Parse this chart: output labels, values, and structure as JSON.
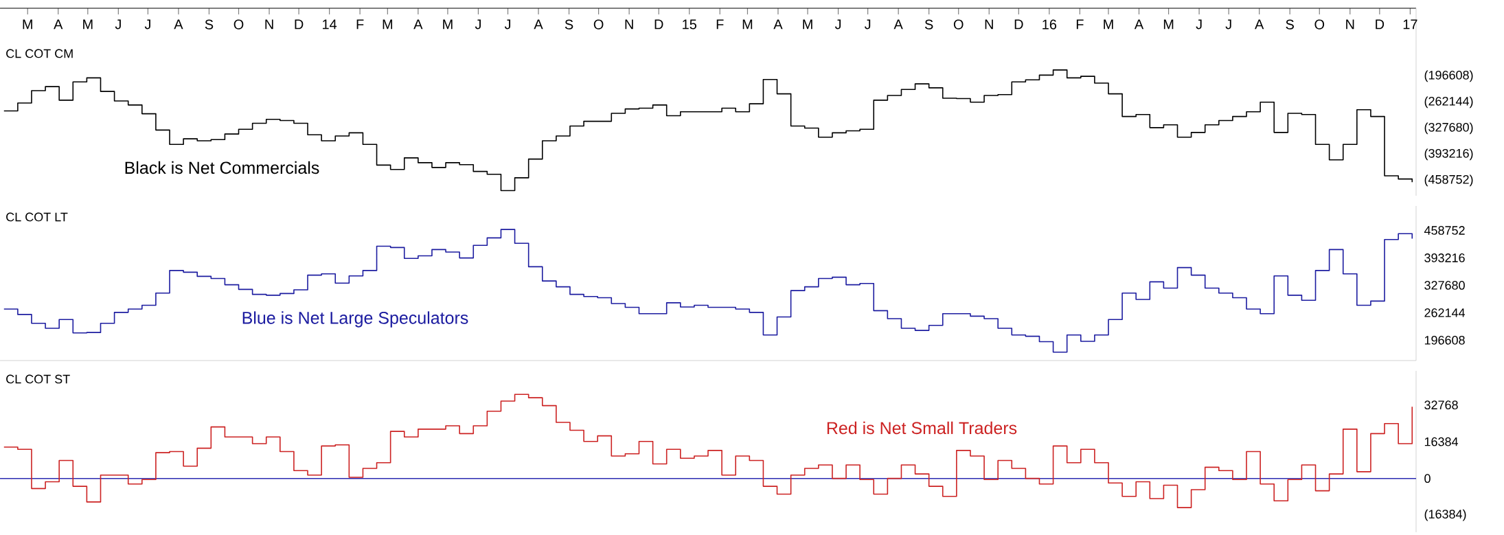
{
  "chart_data": [
    {
      "type": "step",
      "title": "CL COT CM",
      "annotations": [
        "Black is Net Commercials"
      ],
      "x": [
        "2013-02-05",
        "2013-02-19",
        "2013-03-05",
        "2013-03-19",
        "2013-04-02",
        "2013-04-16",
        "2013-04-30",
        "2013-05-14",
        "2013-05-28",
        "2013-06-11",
        "2013-06-25",
        "2013-07-09",
        "2013-07-23",
        "2013-08-06",
        "2013-08-20",
        "2013-09-03",
        "2013-09-17",
        "2013-10-01",
        "2013-10-15",
        "2013-10-29",
        "2013-11-12",
        "2013-11-26",
        "2013-12-10",
        "2013-12-24",
        "2014-01-07",
        "2014-01-21",
        "2014-02-04",
        "2014-02-18",
        "2014-03-04",
        "2014-03-18",
        "2014-04-01",
        "2014-04-15",
        "2014-04-29",
        "2014-05-13",
        "2014-05-27",
        "2014-06-10",
        "2014-06-24",
        "2014-07-08",
        "2014-07-22",
        "2014-08-05",
        "2014-08-19",
        "2014-09-02",
        "2014-09-16",
        "2014-09-30",
        "2014-10-14",
        "2014-10-28",
        "2014-11-11",
        "2014-11-25",
        "2014-12-09",
        "2014-12-23",
        "2015-01-06",
        "2015-01-20",
        "2015-02-03",
        "2015-02-17",
        "2015-03-03",
        "2015-03-17",
        "2015-03-31",
        "2015-04-14",
        "2015-04-28",
        "2015-05-12",
        "2015-05-26",
        "2015-06-09",
        "2015-06-23",
        "2015-07-07",
        "2015-07-21",
        "2015-08-04",
        "2015-08-18",
        "2015-09-01",
        "2015-09-15",
        "2015-09-29",
        "2015-10-13",
        "2015-10-27",
        "2015-11-10",
        "2015-11-24",
        "2015-12-08",
        "2015-12-22",
        "2016-01-05",
        "2016-01-19",
        "2016-02-02",
        "2016-02-16",
        "2016-03-01",
        "2016-03-15",
        "2016-03-29",
        "2016-04-12",
        "2016-04-26",
        "2016-05-10",
        "2016-05-24",
        "2016-06-07",
        "2016-06-21",
        "2016-07-05",
        "2016-07-19",
        "2016-08-02",
        "2016-08-16",
        "2016-08-30",
        "2016-09-13",
        "2016-09-27",
        "2016-10-11",
        "2016-10-25",
        "2016-11-08",
        "2016-11-22",
        "2016-12-06",
        "2016-12-20",
        "2017-01-03"
      ],
      "series": [
        {
          "color": "#000000",
          "values": [
            -284000,
            -264000,
            -233000,
            -223000,
            -257000,
            -211000,
            -201000,
            -235000,
            -259000,
            -269000,
            -291000,
            -332000,
            -368000,
            -354000,
            -359000,
            -356000,
            -342000,
            -330000,
            -315000,
            -305000,
            -308000,
            -315000,
            -344000,
            -359000,
            -347000,
            -339000,
            -368000,
            -420000,
            -431000,
            -402000,
            -414000,
            -426000,
            -414000,
            -419000,
            -436000,
            -443000,
            -484000,
            -452000,
            -405000,
            -359000,
            -347000,
            -322000,
            -310000,
            -310000,
            -290000,
            -279000,
            -277000,
            -269000,
            -296000,
            -286000,
            -286000,
            -286000,
            -277000,
            -286000,
            -266000,
            -205000,
            -241000,
            -322000,
            -327000,
            -350000,
            -339000,
            -334000,
            -330000,
            -257000,
            -245000,
            -230000,
            -216000,
            -226000,
            -252000,
            -253000,
            -262000,
            -245000,
            -243000,
            -211000,
            -206000,
            -194000,
            -181000,
            -201000,
            -197000,
            -214000,
            -241000,
            -298000,
            -293000,
            -326000,
            -319000,
            -350000,
            -338000,
            -319000,
            -308000,
            -298000,
            -286000,
            -262000,
            -338000,
            -290000,
            -293000,
            -368000,
            -407000,
            -368000,
            -281000,
            -298000,
            -447000,
            -455000,
            -463000
          ]
        }
      ],
      "xlim": [
        "2013-02-01",
        "2017-01-07"
      ],
      "xticks": [
        {
          "value": "2013-03-01",
          "label": "M"
        },
        {
          "value": "2013-04-01",
          "label": "A"
        },
        {
          "value": "2013-05-01",
          "label": "M"
        },
        {
          "value": "2013-06-01",
          "label": "J"
        },
        {
          "value": "2013-07-01",
          "label": "J"
        },
        {
          "value": "2013-08-01",
          "label": "A"
        },
        {
          "value": "2013-09-01",
          "label": "S"
        },
        {
          "value": "2013-10-01",
          "label": "O"
        },
        {
          "value": "2013-11-01",
          "label": "N"
        },
        {
          "value": "2013-12-01",
          "label": "D"
        },
        {
          "value": "2014-01-01",
          "label": "14"
        },
        {
          "value": "2014-02-01",
          "label": "F"
        },
        {
          "value": "2014-03-01",
          "label": "M"
        },
        {
          "value": "2014-04-01",
          "label": "A"
        },
        {
          "value": "2014-05-01",
          "label": "M"
        },
        {
          "value": "2014-06-01",
          "label": "J"
        },
        {
          "value": "2014-07-01",
          "label": "J"
        },
        {
          "value": "2014-08-01",
          "label": "A"
        },
        {
          "value": "2014-09-01",
          "label": "S"
        },
        {
          "value": "2014-10-01",
          "label": "O"
        },
        {
          "value": "2014-11-01",
          "label": "N"
        },
        {
          "value": "2014-12-01",
          "label": "D"
        },
        {
          "value": "2015-01-01",
          "label": "15"
        },
        {
          "value": "2015-02-01",
          "label": "F"
        },
        {
          "value": "2015-03-01",
          "label": "M"
        },
        {
          "value": "2015-04-01",
          "label": "A"
        },
        {
          "value": "2015-05-01",
          "label": "M"
        },
        {
          "value": "2015-06-01",
          "label": "J"
        },
        {
          "value": "2015-07-01",
          "label": "J"
        },
        {
          "value": "2015-08-01",
          "label": "A"
        },
        {
          "value": "2015-09-01",
          "label": "S"
        },
        {
          "value": "2015-10-01",
          "label": "O"
        },
        {
          "value": "2015-11-01",
          "label": "N"
        },
        {
          "value": "2015-12-01",
          "label": "D"
        },
        {
          "value": "2016-01-01",
          "label": "16"
        },
        {
          "value": "2016-02-01",
          "label": "F"
        },
        {
          "value": "2016-03-01",
          "label": "M"
        },
        {
          "value": "2016-04-01",
          "label": "A"
        },
        {
          "value": "2016-05-01",
          "label": "M"
        },
        {
          "value": "2016-06-01",
          "label": "J"
        },
        {
          "value": "2016-07-01",
          "label": "J"
        },
        {
          "value": "2016-08-01",
          "label": "A"
        },
        {
          "value": "2016-09-01",
          "label": "S"
        },
        {
          "value": "2016-10-01",
          "label": "O"
        },
        {
          "value": "2016-11-01",
          "label": "N"
        },
        {
          "value": "2016-12-01",
          "label": "D"
        },
        {
          "value": "2017-01-01",
          "label": "17"
        }
      ],
      "ylim": [
        -497000,
        -26000
      ],
      "yticks": [
        {
          "value": -196608,
          "label": "(196608)"
        },
        {
          "value": -262144,
          "label": "(262144)"
        },
        {
          "value": -327680,
          "label": "(327680)"
        },
        {
          "value": -393216,
          "label": "(393216)"
        },
        {
          "value": -458752,
          "label": "(458752)"
        }
      ]
    },
    {
      "type": "step",
      "title": "CL COT LT",
      "annotations": [
        "Blue is Net Large Speculators"
      ],
      "x": [
        "2013-02-05",
        "2013-02-19",
        "2013-03-05",
        "2013-03-19",
        "2013-04-02",
        "2013-04-16",
        "2013-04-30",
        "2013-05-14",
        "2013-05-28",
        "2013-06-11",
        "2013-06-25",
        "2013-07-09",
        "2013-07-23",
        "2013-08-06",
        "2013-08-20",
        "2013-09-03",
        "2013-09-17",
        "2013-10-01",
        "2013-10-15",
        "2013-10-29",
        "2013-11-12",
        "2013-11-26",
        "2013-12-10",
        "2013-12-24",
        "2014-01-07",
        "2014-01-21",
        "2014-02-04",
        "2014-02-18",
        "2014-03-04",
        "2014-03-18",
        "2014-04-01",
        "2014-04-15",
        "2014-04-29",
        "2014-05-13",
        "2014-05-27",
        "2014-06-10",
        "2014-06-24",
        "2014-07-08",
        "2014-07-22",
        "2014-08-05",
        "2014-08-19",
        "2014-09-02",
        "2014-09-16",
        "2014-09-30",
        "2014-10-14",
        "2014-10-28",
        "2014-11-11",
        "2014-11-25",
        "2014-12-09",
        "2014-12-23",
        "2015-01-06",
        "2015-01-20",
        "2015-02-03",
        "2015-02-17",
        "2015-03-03",
        "2015-03-17",
        "2015-03-31",
        "2015-04-14",
        "2015-04-28",
        "2015-05-12",
        "2015-05-26",
        "2015-06-09",
        "2015-06-23",
        "2015-07-07",
        "2015-07-21",
        "2015-08-04",
        "2015-08-18",
        "2015-09-01",
        "2015-09-15",
        "2015-09-29",
        "2015-10-13",
        "2015-10-27",
        "2015-11-10",
        "2015-11-24",
        "2015-12-08",
        "2015-12-22",
        "2016-01-05",
        "2016-01-19",
        "2016-02-02",
        "2016-02-16",
        "2016-03-01",
        "2016-03-15",
        "2016-03-29",
        "2016-04-12",
        "2016-04-26",
        "2016-05-10",
        "2016-05-24",
        "2016-06-07",
        "2016-06-21",
        "2016-07-05",
        "2016-07-19",
        "2016-08-02",
        "2016-08-16",
        "2016-08-30",
        "2016-09-13",
        "2016-09-27",
        "2016-10-11",
        "2016-10-25",
        "2016-11-08",
        "2016-11-22",
        "2016-12-06",
        "2016-12-20",
        "2017-01-03"
      ],
      "series": [
        {
          "color": "#1c1ca0",
          "values": [
            271000,
            258000,
            237000,
            225000,
            246000,
            214000,
            215000,
            237000,
            263000,
            271000,
            280000,
            309000,
            363000,
            359000,
            349000,
            344000,
            329000,
            318000,
            306000,
            304000,
            308000,
            317000,
            352000,
            355000,
            333000,
            350000,
            363000,
            421000,
            418000,
            392000,
            398000,
            413000,
            407000,
            393000,
            423000,
            441000,
            461000,
            428000,
            372000,
            338000,
            324000,
            306000,
            301000,
            298000,
            284000,
            275000,
            260000,
            260000,
            286000,
            276000,
            280000,
            275000,
            275000,
            271000,
            263000,
            209000,
            252000,
            315000,
            324000,
            344000,
            347000,
            329000,
            332000,
            267000,
            248000,
            225000,
            220000,
            232000,
            260000,
            260000,
            254000,
            248000,
            225000,
            209000,
            206000,
            193000,
            168000,
            209000,
            194000,
            209000,
            246000,
            309000,
            294000,
            336000,
            321000,
            370000,
            352000,
            321000,
            309000,
            298000,
            271000,
            260000,
            350000,
            304000,
            292000,
            363000,
            413000,
            355000,
            280000,
            290000,
            437000,
            451000,
            439000
          ]
        }
      ],
      "xlim": [
        "2013-02-01",
        "2017-01-07"
      ],
      "ylim": [
        148000,
        517000
      ],
      "yticks": [
        458752,
        393216,
        327680,
        262144,
        196608
      ],
      "tick_labels": "y"
    },
    {
      "type": "step",
      "title": "CL COT ST",
      "annotations": [
        "Red is Net Small Traders"
      ],
      "x": [
        "2013-02-05",
        "2013-02-19",
        "2013-03-05",
        "2013-03-19",
        "2013-04-02",
        "2013-04-16",
        "2013-04-30",
        "2013-05-14",
        "2013-05-28",
        "2013-06-11",
        "2013-06-25",
        "2013-07-09",
        "2013-07-23",
        "2013-08-06",
        "2013-08-20",
        "2013-09-03",
        "2013-09-17",
        "2013-10-01",
        "2013-10-15",
        "2013-10-29",
        "2013-11-12",
        "2013-11-26",
        "2013-12-10",
        "2013-12-24",
        "2014-01-07",
        "2014-01-21",
        "2014-02-04",
        "2014-02-18",
        "2014-03-04",
        "2014-03-18",
        "2014-04-01",
        "2014-04-15",
        "2014-04-29",
        "2014-05-13",
        "2014-05-27",
        "2014-06-10",
        "2014-06-24",
        "2014-07-08",
        "2014-07-22",
        "2014-08-05",
        "2014-08-19",
        "2014-09-02",
        "2014-09-16",
        "2014-09-30",
        "2014-10-14",
        "2014-10-28",
        "2014-11-11",
        "2014-11-25",
        "2014-12-09",
        "2014-12-23",
        "2015-01-06",
        "2015-01-20",
        "2015-02-03",
        "2015-02-17",
        "2015-03-03",
        "2015-03-17",
        "2015-03-31",
        "2015-04-14",
        "2015-04-28",
        "2015-05-12",
        "2015-05-26",
        "2015-06-09",
        "2015-06-23",
        "2015-07-07",
        "2015-07-21",
        "2015-08-04",
        "2015-08-18",
        "2015-09-01",
        "2015-09-15",
        "2015-09-29",
        "2015-10-13",
        "2015-10-27",
        "2015-11-10",
        "2015-11-24",
        "2015-12-08",
        "2015-12-22",
        "2016-01-05",
        "2016-01-19",
        "2016-02-02",
        "2016-02-16",
        "2016-03-01",
        "2016-03-15",
        "2016-03-29",
        "2016-04-12",
        "2016-04-26",
        "2016-05-10",
        "2016-05-24",
        "2016-06-07",
        "2016-06-21",
        "2016-07-05",
        "2016-07-19",
        "2016-08-02",
        "2016-08-16",
        "2016-08-30",
        "2016-09-13",
        "2016-09-27",
        "2016-10-11",
        "2016-10-25",
        "2016-11-08",
        "2016-11-22",
        "2016-12-06",
        "2016-12-20",
        "2017-01-03"
      ],
      "series": [
        {
          "color": "#cc2222",
          "values": [
            14000,
            13000,
            -4500,
            -1500,
            8000,
            -3500,
            -10500,
            1500,
            1500,
            -2500,
            -500,
            11500,
            12000,
            5500,
            13500,
            23000,
            18500,
            18500,
            15500,
            18500,
            12000,
            3500,
            1500,
            14500,
            15000,
            500,
            4500,
            7000,
            21000,
            18500,
            22000,
            22000,
            23500,
            20000,
            23500,
            30000,
            34500,
            37500,
            36000,
            32500,
            25000,
            21500,
            16500,
            19000,
            10000,
            11000,
            16500,
            6500,
            13000,
            9000,
            10000,
            12500,
            1500,
            10000,
            8000,
            -3500,
            -7000,
            1500,
            4500,
            6000,
            0,
            6000,
            -500,
            -7000,
            0,
            6000,
            2000,
            -3500,
            -8000,
            12500,
            10000,
            -500,
            8000,
            4500,
            0,
            -2500,
            14500,
            7000,
            13000,
            7000,
            -2000,
            -8000,
            -1500,
            -9000,
            -3000,
            -13000,
            -5000,
            5000,
            3500,
            -500,
            12000,
            -2500,
            -10000,
            -500,
            6000,
            -5500,
            2000,
            22000,
            3000,
            20000,
            24500,
            15500,
            32000
          ]
        }
      ],
      "xlim": [
        "2013-02-01",
        "2017-01-07"
      ],
      "ylim": [
        -24000,
        48000
      ],
      "yticks": [
        32768,
        16384,
        0,
        {
          "value": -16384,
          "label": "(16384)"
        }
      ],
      "ref_lines": [
        {
          "axis": "y",
          "value": 0,
          "color": "#2b2bb0"
        }
      ],
      "tick_labels": "y"
    }
  ]
}
